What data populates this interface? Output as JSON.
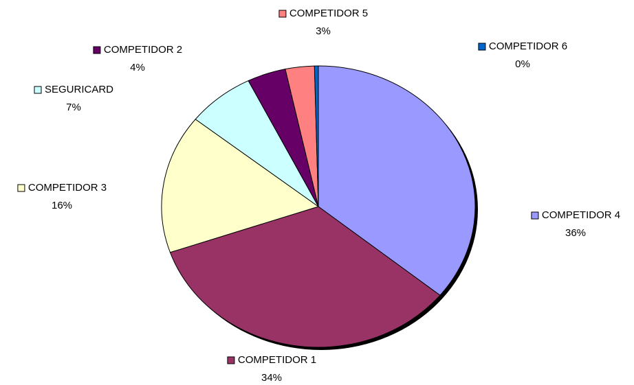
{
  "chart_data": {
    "type": "pie",
    "categories": [
      "COMPETIDOR 4",
      "COMPETIDOR 1",
      "COMPETIDOR 3",
      "SEGURICARD",
      "COMPETIDOR 2",
      "COMPETIDOR 5",
      "COMPETIDOR 6"
    ],
    "values": [
      36,
      34,
      16,
      7,
      4,
      3,
      0.4
    ],
    "value_labels": [
      "36%",
      "34%",
      "16%",
      "7%",
      "4%",
      "3%",
      "0%"
    ],
    "colors": [
      "#9999ff",
      "#993366",
      "#ffffcc",
      "#ccffff",
      "#660066",
      "#ff8080",
      "#0066cc"
    ]
  }
}
